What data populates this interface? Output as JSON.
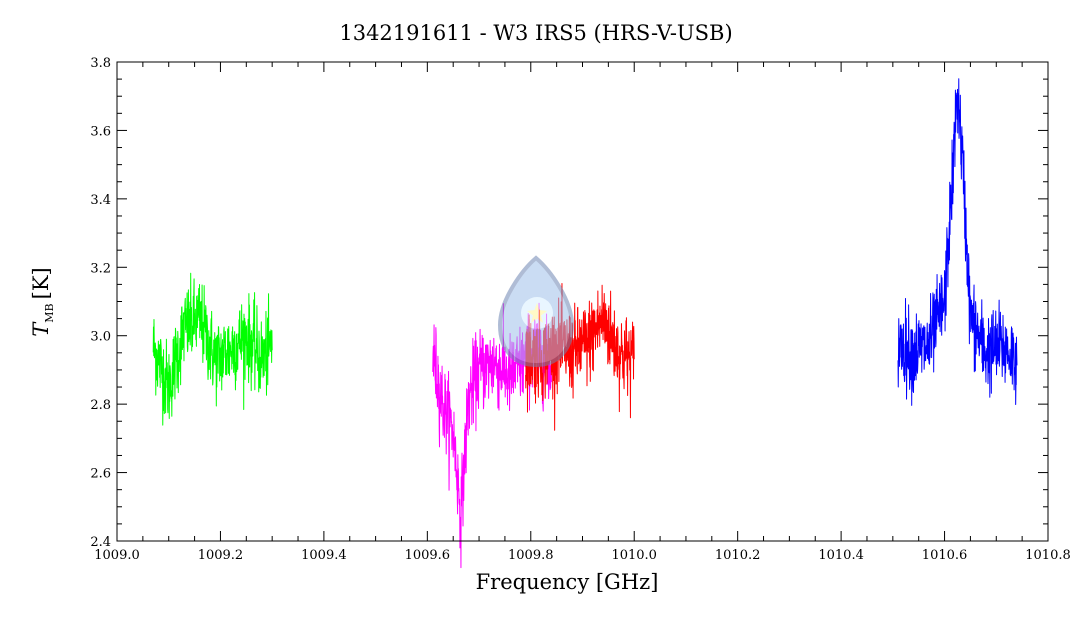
{
  "chart_data": {
    "type": "line",
    "title": "1342191611 - W3 IRS5 (HRS-V-USB)",
    "xlabel": "Frequency [GHz]",
    "ylabel": "T",
    "ylabel_subscript": "MB",
    "ylabel_unit": "[K]",
    "xlim": [
      1009.0,
      1010.8
    ],
    "ylim": [
      2.4,
      3.8
    ],
    "x_ticks": [
      "1009.0",
      "1009.2",
      "1009.4",
      "1009.6",
      "1009.8",
      "1010.0",
      "1010.2",
      "1010.4",
      "1010.6",
      "1010.8"
    ],
    "y_ticks": [
      "2.4",
      "2.6",
      "2.8",
      "3.0",
      "3.2",
      "3.4",
      "3.6",
      "3.8"
    ],
    "grid": false,
    "series": [
      {
        "color": "#00ff00",
        "x_range": [
          1009.07,
          1009.3
        ],
        "x": [
          1009.07,
          1009.1,
          1009.13,
          1009.16,
          1009.19,
          1009.22,
          1009.25,
          1009.28,
          1009.3
        ],
        "y": [
          2.97,
          2.85,
          3.02,
          3.05,
          2.93,
          2.96,
          3.0,
          2.93,
          2.97
        ]
      },
      {
        "color": "#ff00ff",
        "x_range": [
          1009.61,
          1009.84
        ],
        "x": [
          1009.61,
          1009.63,
          1009.65,
          1009.665,
          1009.68,
          1009.7,
          1009.73,
          1009.76,
          1009.79,
          1009.81,
          1009.84
        ],
        "y": [
          2.95,
          2.8,
          2.72,
          2.48,
          2.82,
          2.9,
          2.92,
          2.88,
          2.93,
          2.96,
          2.9
        ]
      },
      {
        "color": "#ff0000",
        "x_range": [
          1009.79,
          1010.0
        ],
        "x": [
          1009.79,
          1009.82,
          1009.85,
          1009.88,
          1009.91,
          1009.94,
          1009.97,
          1010.0
        ],
        "y": [
          2.95,
          2.93,
          2.97,
          2.95,
          2.98,
          3.05,
          2.95,
          2.93
        ]
      },
      {
        "color": "#0000ff",
        "x_range": [
          1010.51,
          1010.74
        ],
        "x": [
          1010.51,
          1010.54,
          1010.57,
          1010.6,
          1010.615,
          1010.625,
          1010.635,
          1010.65,
          1010.68,
          1010.71,
          1010.74
        ],
        "y": [
          2.98,
          2.95,
          2.97,
          3.1,
          3.45,
          3.72,
          3.5,
          3.05,
          2.95,
          2.97,
          2.93
        ]
      }
    ]
  }
}
